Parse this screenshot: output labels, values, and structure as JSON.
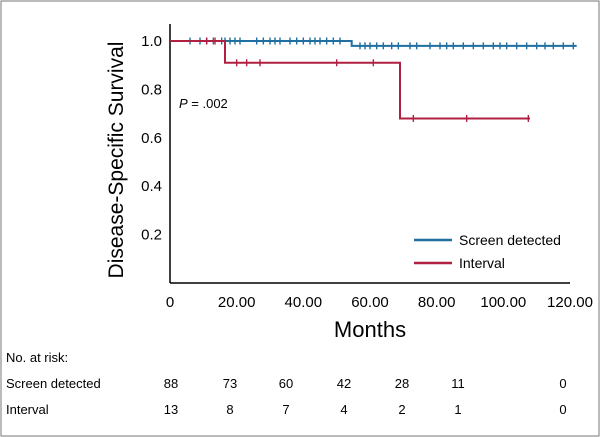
{
  "chart_data": {
    "type": "line",
    "subtype": "kaplan-meier",
    "xlabel": "Months",
    "ylabel": "Disease-Specific Survival",
    "xlim": [
      0,
      120
    ],
    "ylim": [
      0.0,
      1.0
    ],
    "x_ticks": [
      "0",
      "20.00",
      "40.00",
      "60.00",
      "80.00",
      "100.00",
      "120.00"
    ],
    "x_tick_values": [
      0,
      20,
      40,
      60,
      80,
      100,
      120
    ],
    "y_ticks": [
      "0.2",
      "0.4",
      "0.6",
      "0.8",
      "1.0"
    ],
    "y_tick_values": [
      0.2,
      0.4,
      0.6,
      0.8,
      1.0
    ],
    "grid": false,
    "legend_position": "bottom-right",
    "annotation": {
      "label": "P",
      "text": " = .002",
      "x": 3,
      "y": 0.86
    },
    "series": [
      {
        "name": "Screen detected",
        "color": "#1f6fa0",
        "steps": [
          [
            0,
            1.0
          ],
          [
            54.5,
            1.0
          ],
          [
            54.5,
            0.98
          ],
          [
            122,
            0.98
          ]
        ],
        "censored": [
          6,
          9,
          11,
          13,
          15.5,
          16.5,
          18,
          19.5,
          21,
          26,
          28,
          30,
          31.5,
          33,
          36,
          38,
          40,
          42,
          43.5,
          45,
          47,
          49,
          51,
          57,
          58.5,
          60,
          62,
          64,
          66.5,
          68.5,
          72,
          74,
          78,
          81,
          83,
          85,
          88,
          91,
          94,
          97,
          99,
          101,
          104,
          107,
          110,
          112.5,
          115,
          118,
          121
        ]
      },
      {
        "name": "Interval",
        "color": "#b02040",
        "steps": [
          [
            0,
            1.0
          ],
          [
            16.5,
            1.0
          ],
          [
            16.5,
            0.91
          ],
          [
            69,
            0.91
          ],
          [
            69,
            0.68
          ],
          [
            108,
            0.68
          ]
        ],
        "censored": [
          11,
          13.5,
          20,
          23,
          27,
          50,
          61,
          73,
          89,
          107.5
        ]
      }
    ]
  },
  "risk_table": {
    "title": "No. at risk:",
    "rows": [
      {
        "label": "Screen detected",
        "values": [
          "88",
          "73",
          "60",
          "42",
          "28",
          "11",
          "0"
        ]
      },
      {
        "label": "Interval",
        "values": [
          "13",
          "8",
          "7",
          "4",
          "2",
          "1",
          "0"
        ]
      }
    ]
  }
}
